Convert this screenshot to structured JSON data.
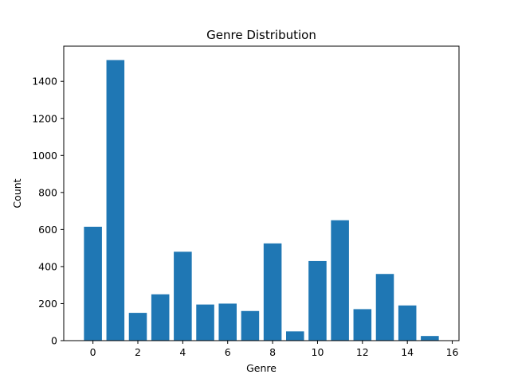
{
  "chart_data": {
    "type": "bar",
    "title": "Genre Distribution",
    "xlabel": "Genre",
    "ylabel": "Count",
    "x": [
      0,
      1,
      2,
      3,
      4,
      5,
      6,
      7,
      8,
      9,
      10,
      11,
      12,
      13,
      14,
      15
    ],
    "values": [
      615,
      1515,
      150,
      250,
      480,
      195,
      200,
      160,
      525,
      50,
      430,
      650,
      170,
      360,
      190,
      25
    ],
    "xlim": [
      -1.3,
      16.3
    ],
    "ylim": [
      0,
      1590
    ],
    "xticks": [
      0,
      2,
      4,
      6,
      8,
      10,
      12,
      14,
      16
    ],
    "yticks": [
      0,
      200,
      400,
      600,
      800,
      1000,
      1200,
      1400
    ],
    "bar_color": "#1f77b4",
    "grid": false,
    "legend": "none"
  }
}
